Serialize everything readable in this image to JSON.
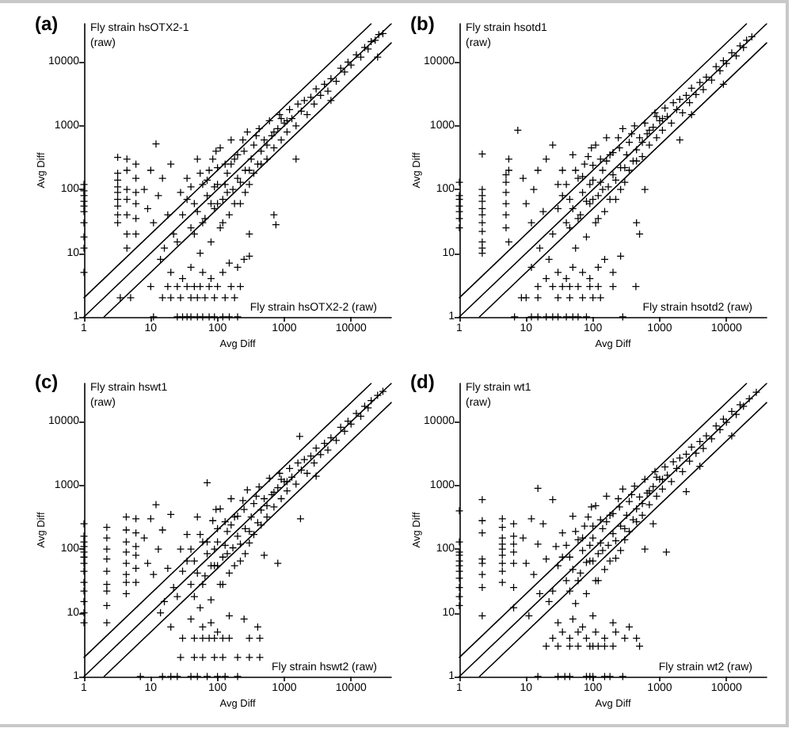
{
  "chart_data": [
    {
      "type": "scatter",
      "title": "(a)",
      "xlabel": "Avg Diff",
      "ylabel": "Avg Diff",
      "annotations": [
        "Fly strain hsOTX2-1\n(raw)",
        "Fly strain hsOTX2-2 (raw)"
      ],
      "log": "xy",
      "xlim": [
        1,
        40000
      ],
      "ylim": [
        1,
        40000
      ],
      "xticks": [
        1,
        10,
        100,
        1000,
        10000
      ],
      "yticks": [
        1,
        10,
        100,
        1000,
        10000
      ],
      "marker": "cross",
      "series": [
        {
          "color": "#000000",
          "x": [
            1,
            1,
            1,
            1,
            1,
            1,
            1,
            1,
            1,
            1,
            3.2,
            3.2,
            3.2,
            3.2,
            3.2,
            3.2,
            3.2,
            3.2,
            3.2,
            4.4,
            4.4,
            4.4,
            4.4,
            4.4,
            4.4,
            4.4,
            6,
            6,
            6,
            6,
            6,
            6,
            8,
            9,
            10,
            12,
            11,
            13,
            15,
            16,
            18,
            20,
            22,
            14,
            11,
            25,
            30,
            35,
            40,
            50,
            60,
            75,
            90,
            120,
            150,
            200,
            3.5,
            5,
            15,
            20,
            28,
            40,
            50,
            65,
            90,
            130,
            180,
            10,
            18,
            25,
            35,
            45,
            55,
            75,
            100,
            160,
            220,
            20,
            30,
            40,
            60,
            80,
            120,
            150,
            200,
            250,
            300,
            25,
            30,
            28,
            35,
            40,
            45,
            50,
            55,
            60,
            65,
            70,
            75,
            80,
            90,
            95,
            100,
            110,
            120,
            130,
            140,
            150,
            160,
            170,
            180,
            200,
            220,
            250,
            260,
            280,
            300,
            320,
            350,
            400,
            420,
            450,
            500,
            550,
            600,
            650,
            700,
            800,
            850,
            900,
            1000,
            1100,
            1200,
            1300,
            1500,
            1600,
            1800,
            2000,
            2200,
            2500,
            2800,
            3000,
            3500,
            4000,
            4500,
            5000,
            6000,
            7000,
            8000,
            9000,
            10000,
            12000,
            14000,
            16000,
            18000,
            20000,
            23000,
            26000,
            30000,
            750,
            700,
            1500,
            300,
            5000,
            25000,
            35,
            40,
            45,
            50,
            55,
            60,
            70,
            80,
            85,
            90,
            100,
            100,
            110,
            120,
            130,
            140,
            160,
            180,
            200,
            220,
            240,
            260,
            300,
            350,
            380,
            450,
            550,
            700,
            900,
            1100
          ],
          "values": [
            120,
            95,
            80,
            65,
            55,
            45,
            30,
            18,
            12,
            5,
            320,
            180,
            140,
            110,
            90,
            70,
            55,
            40,
            30,
            300,
            200,
            100,
            70,
            40,
            20,
            12,
            250,
            150,
            90,
            60,
            35,
            20,
            100,
            50,
            200,
            520,
            30,
            80,
            150,
            12,
            40,
            250,
            20,
            8,
            1,
            1,
            1,
            1,
            1,
            1,
            1,
            1,
            1,
            1,
            1,
            1,
            2,
            2,
            2,
            2,
            2,
            2,
            2,
            2,
            2,
            2,
            2,
            3,
            3,
            3,
            3,
            3,
            3,
            3,
            3,
            3,
            3,
            5,
            4,
            6,
            5,
            4,
            5,
            7,
            6,
            8,
            9,
            15,
            40,
            90,
            150,
            25,
            60,
            300,
            10,
            120,
            35,
            80,
            200,
            15,
            50,
            400,
            120,
            25,
            70,
            250,
            180,
            40,
            600,
            100,
            300,
            150,
            60,
            400,
            200,
            800,
            120,
            300,
            500,
            250,
            900,
            400,
            600,
            300,
            1200,
            700,
            450,
            900,
            1500,
            600,
            1100,
            800,
            1800,
            1300,
            1000,
            2200,
            1700,
            2500,
            1500,
            2800,
            2200,
            3800,
            3000,
            4500,
            3500,
            5500,
            5000,
            8000,
            7000,
            10000,
            9000,
            13000,
            12000,
            17000,
            16000,
            21000,
            22000,
            27000,
            28000,
            28,
            40,
            300,
            20,
            2500,
            12000,
            70,
            110,
            20,
            45,
            180,
            30,
            140,
            60,
            300,
            110,
            60,
            220,
            450,
            30,
            120,
            90,
            250,
            60,
            350,
            130,
            600,
            90,
            200,
            180,
            700,
            250,
            500,
            800,
            1300,
            1200
          ]
        },
        {
          "type": "line",
          "color": "#000000",
          "marker": "none",
          "x": [
            1,
            40000
          ],
          "values": [
            1,
            40000
          ]
        },
        {
          "type": "line",
          "color": "#000000",
          "marker": "none",
          "x": [
            1,
            20000
          ],
          "values": [
            2,
            40000
          ]
        },
        {
          "type": "line",
          "color": "#000000",
          "marker": "none",
          "x": [
            2,
            40000
          ],
          "values": [
            1,
            20000
          ]
        }
      ]
    },
    {
      "type": "scatter",
      "title": "(b)",
      "xlabel": "Avg Diff",
      "ylabel": "Avg Diff",
      "annotations": [
        "Fly strain hsotd1\n(raw)",
        "Fly strain hsotd2 (raw)"
      ],
      "log": "xy",
      "xlim": [
        1,
        40000
      ],
      "ylim": [
        1,
        40000
      ],
      "xticks": [
        1,
        10,
        100,
        1000,
        10000
      ],
      "yticks": [
        1,
        10,
        100,
        1000,
        10000
      ],
      "marker": "cross",
      "series": [
        {
          "color": "#000000",
          "x": [
            1,
            1,
            1,
            1,
            1,
            1,
            1,
            2.2,
            2.2,
            2.2,
            2.2,
            2.2,
            2.2,
            2.2,
            2.2,
            2.2,
            2.2,
            2.2,
            5,
            5,
            5,
            5,
            5,
            5,
            5.5,
            5.5,
            5.5,
            7.5,
            9,
            10,
            12,
            13,
            15,
            16,
            18,
            20,
            22,
            25,
            12,
            6.7,
            12,
            15,
            20,
            25,
            30,
            40,
            50,
            60,
            80,
            280,
            8.5,
            10,
            15,
            30,
            45,
            70,
            100,
            130,
            15,
            25,
            35,
            45,
            60,
            90,
            120,
            200,
            440,
            20,
            30,
            40,
            50,
            70,
            90,
            120,
            150,
            200,
            260,
            25,
            30,
            30,
            35,
            40,
            45,
            50,
            55,
            60,
            65,
            70,
            75,
            80,
            90,
            95,
            100,
            110,
            120,
            130,
            140,
            150,
            160,
            170,
            180,
            200,
            220,
            250,
            260,
            280,
            300,
            320,
            350,
            400,
            420,
            450,
            500,
            550,
            600,
            650,
            700,
            800,
            850,
            900,
            1000,
            1100,
            1200,
            1300,
            1500,
            1600,
            1800,
            2000,
            2200,
            2500,
            2800,
            3000,
            3500,
            4000,
            4500,
            5000,
            6000,
            7000,
            8000,
            9000,
            10000,
            12000,
            14000,
            16000,
            18000,
            20000,
            24000,
            450,
            500,
            2000,
            600,
            3000,
            9000,
            35,
            40,
            45,
            50,
            55,
            60,
            70,
            80,
            85,
            90,
            100,
            100,
            110,
            120,
            130,
            140,
            160,
            180,
            200,
            220,
            240,
            260,
            300,
            350,
            380,
            450,
            550,
            700,
            900,
            1100
          ],
          "values": [
            130,
            80,
            70,
            55,
            45,
            35,
            25,
            360,
            100,
            80,
            65,
            50,
            40,
            30,
            22,
            15,
            12,
            10,
            170,
            130,
            90,
            60,
            40,
            25,
            300,
            200,
            15,
            850,
            150,
            60,
            30,
            100,
            200,
            12,
            45,
            300,
            8,
            500,
            6,
            1,
            1,
            1,
            1,
            1,
            1,
            1,
            1,
            1,
            1,
            1,
            2,
            2,
            2,
            2,
            2,
            2,
            2,
            2,
            3,
            3,
            3,
            3,
            3,
            3,
            3,
            3,
            3,
            4,
            5,
            4,
            6,
            5,
            4,
            6,
            8,
            5,
            9,
            20,
            50,
            120,
            200,
            30,
            70,
            350,
            12,
            150,
            40,
            90,
            250,
            18,
            60,
            450,
            140,
            30,
            80,
            300,
            200,
            45,
            650,
            110,
            350,
            170,
            70,
            450,
            220,
            900,
            130,
            350,
            550,
            280,
            1000,
            420,
            650,
            330,
            1100,
            750,
            500,
            950,
            1600,
            650,
            1200,
            850,
            1900,
            1400,
            1100,
            2300,
            1800,
            2600,
            1600,
            3000,
            2300,
            3900,
            3100,
            4800,
            3700,
            5800,
            5200,
            8500,
            7300,
            10500,
            9500,
            14000,
            12500,
            18000,
            17000,
            22000,
            25000,
            30,
            20,
            600,
            100,
            1500,
            4500,
            80,
            120,
            25,
            50,
            200,
            35,
            160,
            65,
            330,
            120,
            70,
            240,
            500,
            35,
            130,
            100,
            280,
            70,
            380,
            140,
            650,
            100,
            220,
            200,
            750,
            280,
            550,
            850,
            1400,
            1300
          ]
        },
        {
          "type": "line",
          "color": "#000000",
          "marker": "none",
          "x": [
            1,
            40000
          ],
          "values": [
            1,
            40000
          ]
        },
        {
          "type": "line",
          "color": "#000000",
          "marker": "none",
          "x": [
            1,
            20000
          ],
          "values": [
            2,
            40000
          ]
        },
        {
          "type": "line",
          "color": "#000000",
          "marker": "none",
          "x": [
            2,
            40000
          ],
          "values": [
            1,
            20000
          ]
        }
      ]
    },
    {
      "type": "scatter",
      "title": "(c)",
      "xlabel": "Avg Diff",
      "ylabel": "Avg Diff",
      "annotations": [
        "Fly strain hswt1\n(raw)",
        "Fly strain hswt2 (raw)"
      ],
      "log": "xy",
      "xlim": [
        1,
        40000
      ],
      "ylim": [
        1,
        40000
      ],
      "xticks": [
        1,
        10,
        100,
        1000,
        10000
      ],
      "yticks": [
        1,
        10,
        100,
        1000,
        10000
      ],
      "marker": "cross",
      "series": [
        {
          "color": "#000000",
          "x": [
            1,
            1,
            1,
            1,
            1,
            1,
            1,
            1,
            1,
            1,
            1,
            1,
            1,
            2.2,
            2.2,
            2.2,
            2.2,
            2.2,
            2.2,
            2.2,
            2.2,
            2.2,
            4.3,
            4.3,
            4.3,
            4.3,
            4.3,
            4.3,
            4.3,
            4.3,
            6,
            6,
            6,
            6,
            6,
            6,
            8,
            9,
            10,
            12,
            11,
            13,
            15,
            16,
            18,
            20,
            22,
            14,
            7,
            15,
            20,
            25,
            40,
            50,
            70,
            100,
            130,
            200,
            28,
            45,
            60,
            90,
            120,
            200,
            300,
            430,
            30,
            45,
            60,
            75,
            90,
            120,
            150,
            300,
            430,
            20,
            40,
            60,
            80,
            100,
            150,
            250,
            400,
            25,
            30,
            28,
            35,
            40,
            45,
            50,
            55,
            60,
            65,
            70,
            70,
            80,
            90,
            95,
            100,
            110,
            120,
            130,
            140,
            150,
            160,
            170,
            180,
            200,
            220,
            250,
            260,
            280,
            300,
            320,
            350,
            400,
            420,
            450,
            500,
            550,
            600,
            650,
            700,
            800,
            850,
            900,
            1000,
            1100,
            1200,
            1300,
            1500,
            1600,
            1800,
            2000,
            2200,
            2500,
            2800,
            3000,
            3500,
            4000,
            4500,
            5000,
            6000,
            7000,
            8000,
            9000,
            10000,
            12000,
            14000,
            16000,
            18000,
            20000,
            25000,
            1750,
            1700,
            800,
            500,
            3000,
            30000,
            35,
            40,
            45,
            50,
            55,
            60,
            70,
            80,
            85,
            90,
            100,
            100,
            110,
            120,
            130,
            140,
            160,
            180,
            200,
            220,
            240,
            260,
            300,
            350,
            380,
            450,
            550,
            700,
            900,
            1100
          ],
          "values": [
            250,
            160,
            130,
            110,
            90,
            75,
            60,
            45,
            30,
            22,
            15,
            10,
            7,
            220,
            150,
            100,
            70,
            45,
            28,
            22,
            13,
            7,
            320,
            200,
            130,
            90,
            60,
            40,
            30,
            20,
            300,
            180,
            110,
            80,
            50,
            30,
            150,
            60,
            300,
            500,
            40,
            100,
            200,
            15,
            50,
            350,
            25,
            10,
            1,
            1,
            1,
            1,
            1,
            1,
            1,
            1,
            1,
            1,
            2,
            2,
            2,
            2,
            2,
            2,
            2,
            2,
            4,
            4,
            4,
            4,
            4,
            4,
            4,
            4,
            4,
            6,
            8,
            6,
            7,
            5,
            9,
            8,
            6,
            18,
            45,
            100,
            170,
            28,
            65,
            320,
            12,
            130,
            38,
            85,
            1100,
            16,
            55,
            420,
            130,
            28,
            75,
            270,
            190,
            42,
            620,
            105,
            320,
            160,
            65,
            420,
            210,
            850,
            125,
            320,
            520,
            260,
            950,
            410,
            620,
            320,
            1300,
            720,
            460,
            920,
            1550,
            620,
            1150,
            820,
            1850,
            1350,
            1050,
            2250,
            1750,
            2550,
            1550,
            2900,
            2250,
            3850,
            3050,
            4600,
            3600,
            5600,
            5100,
            8200,
            7100,
            10200,
            9200,
            13500,
            12200,
            17500,
            16500,
            21500,
            26000,
            300,
            5900,
            60,
            80,
            1400,
            30000,
            65,
            100,
            18,
            42,
            170,
            28,
            130,
            55,
            280,
            100,
            55,
            210,
            430,
            28,
            115,
            85,
            240,
            55,
            330,
            120,
            580,
            85,
            190,
            170,
            680,
            240,
            480,
            780,
            1250,
            1150
          ]
        },
        {
          "type": "line",
          "color": "#000000",
          "marker": "none",
          "x": [
            1,
            40000
          ],
          "values": [
            1,
            40000
          ]
        },
        {
          "type": "line",
          "color": "#000000",
          "marker": "none",
          "x": [
            1,
            20000
          ],
          "values": [
            2,
            40000
          ]
        },
        {
          "type": "line",
          "color": "#000000",
          "marker": "none",
          "x": [
            2,
            40000
          ],
          "values": [
            1,
            20000
          ]
        }
      ]
    },
    {
      "type": "scatter",
      "title": "(d)",
      "xlabel": "Avg Diff",
      "ylabel": "Avg Diff",
      "annotations": [
        "Fly strain wt1\n(raw)",
        "Fly strain wt2 (raw)"
      ],
      "log": "xy",
      "xlim": [
        1,
        40000
      ],
      "ylim": [
        1,
        40000
      ],
      "xticks": [
        1,
        10,
        100,
        1000,
        10000
      ],
      "yticks": [
        1,
        10,
        100,
        1000,
        10000
      ],
      "marker": "cross",
      "series": [
        {
          "color": "#000000",
          "x": [
            1,
            1,
            1,
            1,
            1,
            1,
            1,
            1,
            1,
            1,
            1,
            2.2,
            2.2,
            2.2,
            2.2,
            2.2,
            2.2,
            2.2,
            2.2,
            4.4,
            4.4,
            4.4,
            4.4,
            4.4,
            4.4,
            4.4,
            4.4,
            4.4,
            6.5,
            6.5,
            6.5,
            6.5,
            6.5,
            6.5,
            6.5,
            15,
            9,
            10,
            12,
            13,
            15,
            16,
            18,
            20,
            22,
            25,
            11,
            15,
            30,
            38,
            45,
            80,
            90,
            100,
            150,
            180,
            280,
            20,
            30,
            45,
            60,
            90,
            100,
            120,
            150,
            200,
            500,
            25,
            35,
            45,
            60,
            80,
            110,
            150,
            220,
            300,
            450,
            30,
            50,
            70,
            100,
            200,
            350,
            25,
            30,
            28,
            35,
            40,
            45,
            50,
            55,
            60,
            65,
            70,
            75,
            80,
            90,
            95,
            100,
            110,
            120,
            130,
            140,
            150,
            160,
            170,
            180,
            200,
            220,
            250,
            260,
            280,
            300,
            320,
            350,
            400,
            420,
            450,
            500,
            550,
            600,
            650,
            700,
            800,
            850,
            900,
            1000,
            1100,
            1200,
            1300,
            1500,
            1600,
            1800,
            2000,
            2200,
            2500,
            2800,
            3000,
            3500,
            4000,
            4500,
            5000,
            6000,
            7000,
            8000,
            9000,
            10000,
            12000,
            14000,
            16000,
            18000,
            22000,
            28000,
            1260,
            600,
            800,
            2500,
            4000,
            12000,
            35,
            40,
            45,
            50,
            55,
            60,
            70,
            80,
            85,
            90,
            100,
            100,
            110,
            120,
            130,
            140,
            160,
            180,
            200,
            220,
            240,
            260,
            300,
            350,
            380,
            450,
            550,
            700,
            900,
            1100
          ],
          "values": [
            400,
            130,
            90,
            80,
            65,
            55,
            45,
            35,
            25,
            18,
            13,
            600,
            280,
            180,
            70,
            60,
            25,
            9,
            40,
            300,
            220,
            150,
            120,
            100,
            80,
            60,
            45,
            30,
            250,
            160,
            120,
            90,
            60,
            25,
            12,
            900,
            150,
            60,
            300,
            40,
            120,
            20,
            250,
            70,
            15,
            600,
            9,
            1,
            1,
            1,
            1,
            1,
            1,
            1,
            1,
            1,
            1,
            3,
            3,
            3,
            3,
            3,
            3,
            3,
            3,
            3,
            3,
            4,
            5,
            4,
            5,
            4,
            5,
            4,
            5,
            4,
            4,
            7,
            8,
            6,
            9,
            7,
            6,
            22,
            55,
            110,
            180,
            32,
            75,
            330,
            14,
            140,
            42,
            95,
            230,
            20,
            65,
            460,
            150,
            32,
            85,
            290,
            210,
            48,
            680,
            115,
            340,
            175,
            72,
            460,
            230,
            880,
            140,
            340,
            560,
            290,
            980,
            430,
            660,
            340,
            1250,
            760,
            500,
            960,
            1650,
            680,
            1250,
            880,
            1950,
            1450,
            1150,
            2350,
            1850,
            2700,
            1650,
            3100,
            2400,
            4000,
            3200,
            4900,
            3800,
            6000,
            5400,
            8600,
            7500,
            11000,
            9800,
            14500,
            13000,
            18500,
            17500,
            23000,
            29000,
            90,
            100,
            250,
            800,
            2000,
            6000,
            75,
            115,
            22,
            48,
            190,
            32,
            150,
            62,
            320,
            115,
            65,
            230,
            480,
            32,
            125,
            95,
            270,
            65,
            360,
            135,
            620,
            95,
            210,
            190,
            720,
            270,
            520,
            820,
            1350,
            1250
          ]
        },
        {
          "type": "line",
          "color": "#000000",
          "marker": "none",
          "x": [
            1,
            40000
          ],
          "values": [
            1,
            40000
          ]
        },
        {
          "type": "line",
          "color": "#000000",
          "marker": "none",
          "x": [
            1,
            20000
          ],
          "values": [
            2,
            40000
          ]
        },
        {
          "type": "line",
          "color": "#000000",
          "marker": "none",
          "x": [
            2,
            40000
          ],
          "values": [
            1,
            20000
          ]
        }
      ]
    }
  ]
}
